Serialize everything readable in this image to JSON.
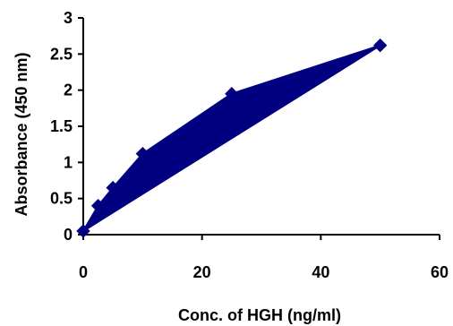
{
  "chart_data": {
    "type": "area",
    "title": "",
    "xlabel": "Conc. of HGH (ng/ml)",
    "ylabel": "Absorbance (450 nm)",
    "xlim": [
      0,
      60
    ],
    "ylim": [
      0,
      3
    ],
    "x_ticks": [
      "0",
      "20",
      "40",
      "60"
    ],
    "y_ticks": [
      "0",
      "0.5",
      "1",
      "1.5",
      "2",
      "2.5",
      "3"
    ],
    "grid": false,
    "legend": "none",
    "series": [
      {
        "x": [
          0,
          2.5,
          5,
          10,
          25,
          50
        ],
        "y": [
          0.05,
          0.4,
          0.65,
          1.12,
          1.95,
          2.62
        ],
        "color": "#000080",
        "marker": "diamond"
      }
    ]
  }
}
